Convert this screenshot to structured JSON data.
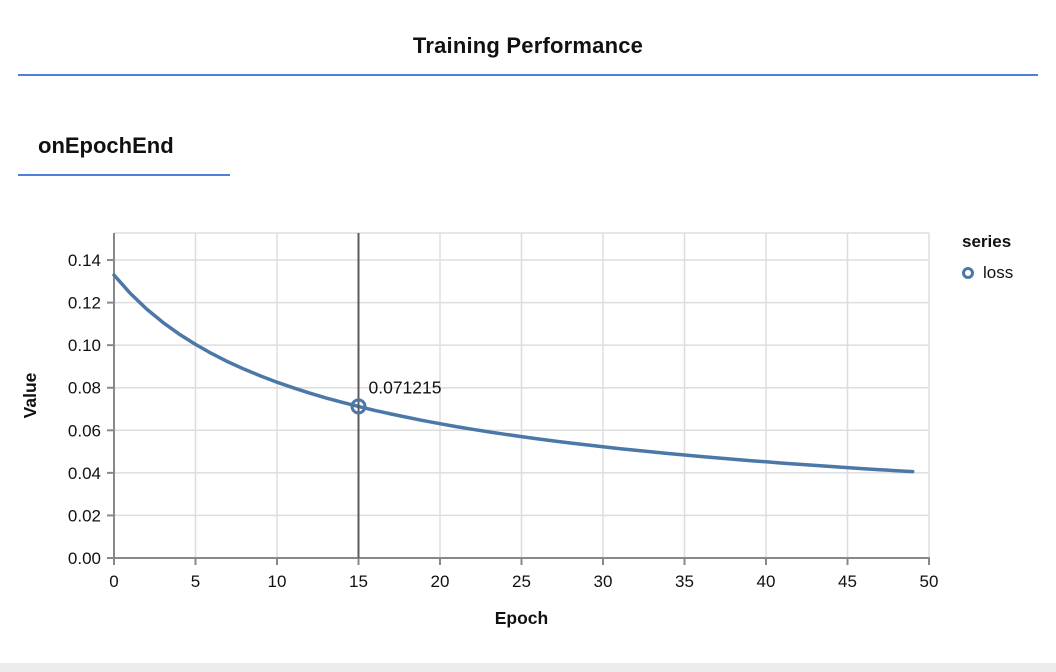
{
  "page": {
    "title": "Training Performance",
    "section_heading": "onEpochEnd"
  },
  "colors": {
    "accent_blue": "#4d82d8",
    "line": "#4c78a8",
    "grid": "#dddddd",
    "axis_domain": "#888888",
    "hover_rule": "#5c5c5c",
    "text": "#111111"
  },
  "legend": {
    "title": "series",
    "items": [
      {
        "label": "loss",
        "marker": "open-circle"
      }
    ]
  },
  "hover": {
    "epoch": 15,
    "value": 0.071215,
    "label": "0.071215"
  },
  "chart_data": {
    "type": "line",
    "title": "",
    "xlabel": "Epoch",
    "ylabel": "Value",
    "xlim": [
      0,
      50
    ],
    "ylim": [
      0,
      0.1527
    ],
    "x_ticks": [
      0,
      5,
      10,
      15,
      20,
      25,
      30,
      35,
      40,
      45,
      50
    ],
    "y_ticks": [
      0.0,
      0.02,
      0.04,
      0.06,
      0.08,
      0.1,
      0.12,
      0.14
    ],
    "grid": true,
    "legend_position": "right",
    "series": [
      {
        "name": "loss",
        "x": [
          0,
          1,
          2,
          3,
          4,
          5,
          6,
          7,
          8,
          9,
          10,
          11,
          12,
          13,
          14,
          15,
          16,
          17,
          18,
          19,
          20,
          21,
          22,
          23,
          24,
          25,
          26,
          27,
          28,
          29,
          30,
          31,
          32,
          33,
          34,
          35,
          36,
          37,
          38,
          39,
          40,
          41,
          42,
          43,
          44,
          45,
          46,
          47,
          48,
          49
        ],
        "values": [
          0.13296,
          0.12433,
          0.11701,
          0.1107,
          0.1052,
          0.10035,
          0.09603,
          0.09216,
          0.08867,
          0.0855,
          0.0826,
          0.07995,
          0.0775,
          0.07524,
          0.07314,
          0.071215,
          0.06935,
          0.06764,
          0.06604,
          0.06452,
          0.0631,
          0.06175,
          0.06048,
          0.05926,
          0.05811,
          0.05702,
          0.05598,
          0.05498,
          0.05403,
          0.05312,
          0.05225,
          0.05141,
          0.05061,
          0.04984,
          0.0491,
          0.04838,
          0.0477,
          0.04703,
          0.04639,
          0.04578,
          0.04518,
          0.0446,
          0.04404,
          0.0435,
          0.04298,
          0.04247,
          0.04197,
          0.04149,
          0.04103,
          0.04058
        ]
      }
    ]
  }
}
